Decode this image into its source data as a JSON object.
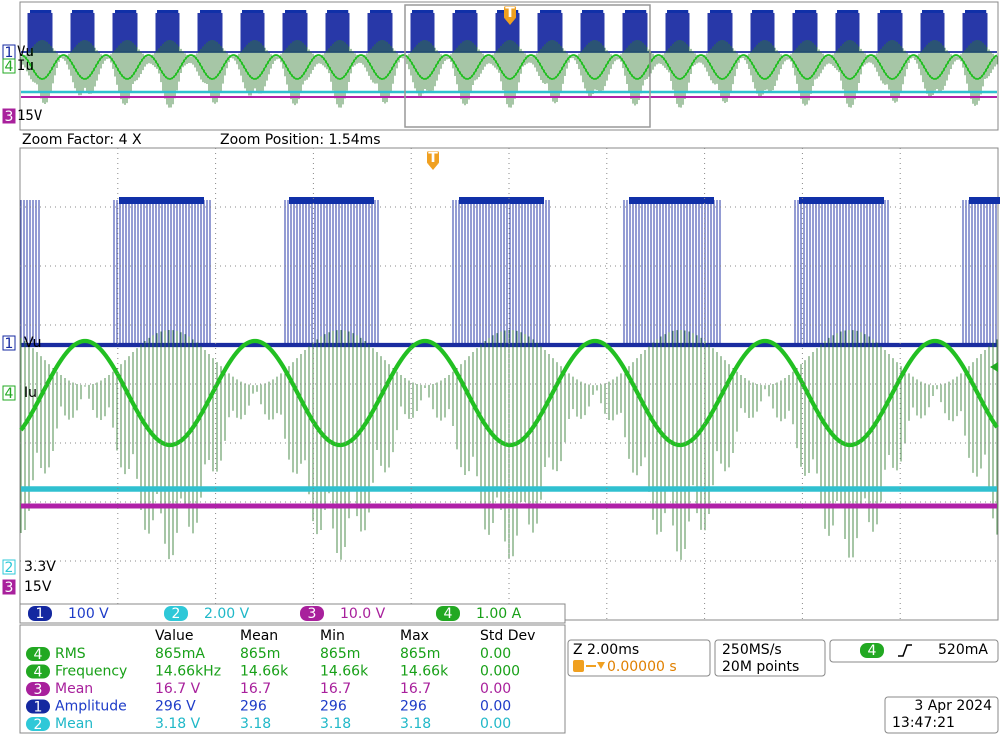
{
  "overview": {
    "trigger": "T",
    "channels": [
      {
        "number": "1",
        "label": "Vu"
      },
      {
        "number": "4",
        "label": "Iu"
      },
      {
        "number": "3",
        "label": "15V"
      }
    ]
  },
  "zoom": {
    "factor": "Zoom Factor: 4 X",
    "position": "Zoom Position: 1.54ms"
  },
  "main": {
    "trigger": "T",
    "channels": [
      {
        "number": "1",
        "label": "Vu"
      },
      {
        "number": "4",
        "label": "Iu"
      },
      {
        "number": "2",
        "label": "3.3V"
      },
      {
        "number": "3",
        "label": "15V"
      }
    ]
  },
  "channel_settings": [
    {
      "number": "1",
      "scale": "100 V"
    },
    {
      "number": "2",
      "scale": "2.00 V"
    },
    {
      "number": "3",
      "scale": "10.0 V"
    },
    {
      "number": "4",
      "scale": "1.00 A"
    }
  ],
  "measurements": {
    "headers": [
      "Value",
      "Mean",
      "Min",
      "Max",
      "Std Dev"
    ],
    "rows": [
      {
        "channel": "4",
        "name": "RMS",
        "value": "865mA",
        "mean": "865m",
        "min": "865m",
        "max": "865m",
        "std_dev": "0.00"
      },
      {
        "channel": "4",
        "name": "Frequency",
        "value": "14.66kHz",
        "mean": "14.66k",
        "min": "14.66k",
        "max": "14.66k",
        "std_dev": "0.000"
      },
      {
        "channel": "3",
        "name": "Mean",
        "value": "16.7 V",
        "mean": "16.7",
        "min": "16.7",
        "max": "16.7",
        "std_dev": "0.00"
      },
      {
        "channel": "1",
        "name": "Amplitude",
        "value": "296 V",
        "mean": "296",
        "min": "296",
        "max": "296",
        "std_dev": "0.00"
      },
      {
        "channel": "2",
        "name": "Mean",
        "value": "3.18 V",
        "mean": "3.18",
        "min": "3.18",
        "max": "3.18",
        "std_dev": "0.00"
      }
    ]
  },
  "timebase": {
    "zoom": "Z 2.00ms",
    "trigger_position": "0.00000 s"
  },
  "acquisition": {
    "sample_rate": "250MS/s",
    "record_length": "20M points"
  },
  "trigger": {
    "source": "4",
    "level": "520mA"
  },
  "datetime": {
    "date": "3 Apr 2024",
    "time": "13:47:21"
  }
}
